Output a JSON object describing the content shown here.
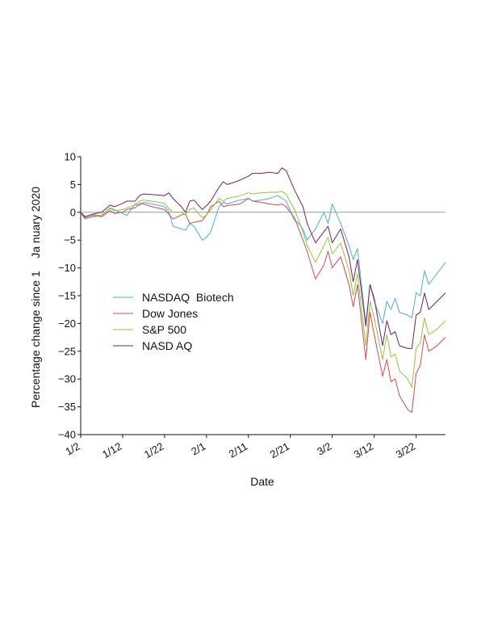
{
  "chart_data": {
    "type": "line",
    "xlabel": "Date",
    "ylabel": "Percentage change since 1    Ja nuary 2020",
    "ylim": [
      -40,
      10
    ],
    "yticks": [
      10,
      5,
      0,
      -5,
      -10,
      -15,
      -20,
      -25,
      -30,
      -35,
      -40
    ],
    "x_tick_labels": [
      "1/2",
      "1/12",
      "1/22",
      "2/1",
      "2/11",
      "2/21",
      "3/2",
      "3/12",
      "3/22"
    ],
    "x_range_days": [
      0,
      87
    ],
    "legend_position": "center-left",
    "grid": false,
    "series": [
      {
        "name": "NASDAQ  Biotech",
        "color": "#4aaed8",
        "points": [
          [
            0,
            0
          ],
          [
            1,
            -1.2
          ],
          [
            3,
            -0.8
          ],
          [
            5,
            -0.5
          ],
          [
            7,
            0.8
          ],
          [
            8,
            0.5
          ],
          [
            10,
            -0.2
          ],
          [
            11,
            -0.6
          ],
          [
            13,
            1.5
          ],
          [
            14,
            1.2
          ],
          [
            15,
            1.8
          ],
          [
            17,
            1.5
          ],
          [
            20,
            1
          ],
          [
            21,
            0.2
          ],
          [
            22,
            -2.5
          ],
          [
            24,
            -3
          ],
          [
            25,
            -3.2
          ],
          [
            26,
            -2
          ],
          [
            27,
            -2.5
          ],
          [
            29,
            -5
          ],
          [
            30,
            -4.5
          ],
          [
            31,
            -3.5
          ],
          [
            33,
            1
          ],
          [
            34,
            1.8
          ],
          [
            35,
            1.5
          ],
          [
            37,
            2
          ],
          [
            38,
            2.2
          ],
          [
            40,
            2.5
          ],
          [
            41,
            2
          ],
          [
            43,
            2.2
          ],
          [
            45,
            2.5
          ],
          [
            47,
            3
          ],
          [
            48,
            2.5
          ],
          [
            49,
            2
          ],
          [
            51,
            -1.5
          ],
          [
            52,
            -2
          ],
          [
            53,
            -3
          ],
          [
            54,
            -5
          ],
          [
            56,
            -3
          ],
          [
            58,
            0
          ],
          [
            59,
            -2
          ],
          [
            60,
            1.5
          ],
          [
            62,
            -2
          ],
          [
            64,
            -6
          ],
          [
            65,
            -8.5
          ],
          [
            66,
            -6.5
          ],
          [
            68,
            -20
          ],
          [
            69,
            -13
          ],
          [
            70,
            -16
          ],
          [
            72,
            -20
          ],
          [
            73,
            -16
          ],
          [
            74,
            -17.5
          ],
          [
            75,
            -15.5
          ],
          [
            76,
            -18
          ],
          [
            78,
            -18.5
          ],
          [
            79,
            -19
          ],
          [
            80,
            -14.5
          ],
          [
            81,
            -15
          ],
          [
            82,
            -10.5
          ],
          [
            83,
            -13
          ],
          [
            85,
            -11
          ],
          [
            87,
            -9
          ]
        ]
      },
      {
        "name": "Dow Jones",
        "color": "#d8484e",
        "points": [
          [
            0,
            0
          ],
          [
            1,
            -1
          ],
          [
            3,
            -0.6
          ],
          [
            5,
            -0.8
          ],
          [
            7,
            0.3
          ],
          [
            8,
            -0.2
          ],
          [
            10,
            0
          ],
          [
            11,
            0.5
          ],
          [
            13,
            0.8
          ],
          [
            14,
            1.6
          ],
          [
            15,
            1.5
          ],
          [
            17,
            1
          ],
          [
            20,
            0.5
          ],
          [
            21,
            -0.3
          ],
          [
            22,
            -1.2
          ],
          [
            24,
            -0.5
          ],
          [
            25,
            -0.3
          ],
          [
            26,
            -2
          ],
          [
            27,
            -1.8
          ],
          [
            29,
            -1.5
          ],
          [
            30,
            -0.5
          ],
          [
            31,
            1
          ],
          [
            33,
            2
          ],
          [
            34,
            1
          ],
          [
            35,
            1.2
          ],
          [
            37,
            1.4
          ],
          [
            38,
            1.5
          ],
          [
            40,
            2.5
          ],
          [
            41,
            2
          ],
          [
            43,
            1.8
          ],
          [
            45,
            1.5
          ],
          [
            47,
            1.3
          ],
          [
            48,
            1.5
          ],
          [
            49,
            1
          ],
          [
            51,
            -1
          ],
          [
            52,
            -3
          ],
          [
            53,
            -5
          ],
          [
            54,
            -7
          ],
          [
            56,
            -12
          ],
          [
            58,
            -9.5
          ],
          [
            59,
            -7
          ],
          [
            60,
            -10
          ],
          [
            62,
            -8
          ],
          [
            64,
            -13
          ],
          [
            65,
            -17
          ],
          [
            66,
            -13
          ],
          [
            68,
            -26.5
          ],
          [
            69,
            -18
          ],
          [
            70,
            -22
          ],
          [
            72,
            -29.5
          ],
          [
            73,
            -26.5
          ],
          [
            74,
            -30.5
          ],
          [
            75,
            -30
          ],
          [
            76,
            -33
          ],
          [
            78,
            -35.5
          ],
          [
            79,
            -36
          ],
          [
            80,
            -29
          ],
          [
            81,
            -27.5
          ],
          [
            82,
            -22
          ],
          [
            83,
            -25
          ],
          [
            85,
            -24
          ],
          [
            87,
            -22.5
          ]
        ]
      },
      {
        "name": "S&P 500",
        "color": "#8ec63f",
        "points": [
          [
            0,
            0
          ],
          [
            1,
            -0.7
          ],
          [
            3,
            -0.4
          ],
          [
            5,
            -0.6
          ],
          [
            7,
            0.7
          ],
          [
            8,
            0.3
          ],
          [
            10,
            0.5
          ],
          [
            11,
            0.8
          ],
          [
            13,
            1.3
          ],
          [
            14,
            2
          ],
          [
            15,
            2.2
          ],
          [
            17,
            2
          ],
          [
            20,
            1.6
          ],
          [
            21,
            0.7
          ],
          [
            22,
            0
          ],
          [
            24,
            0
          ],
          [
            25,
            -0.5
          ],
          [
            26,
            0.5
          ],
          [
            27,
            0.8
          ],
          [
            29,
            -1
          ],
          [
            30,
            -0.5
          ],
          [
            31,
            0.5
          ],
          [
            33,
            2.5
          ],
          [
            34,
            2
          ],
          [
            35,
            2.5
          ],
          [
            37,
            2.8
          ],
          [
            38,
            3
          ],
          [
            40,
            3.5
          ],
          [
            41,
            3.3
          ],
          [
            43,
            3.5
          ],
          [
            45,
            3.6
          ],
          [
            47,
            3.6
          ],
          [
            48,
            3.8
          ],
          [
            49,
            3.2
          ],
          [
            51,
            0.5
          ],
          [
            52,
            -1.5
          ],
          [
            53,
            -3.5
          ],
          [
            54,
            -6
          ],
          [
            56,
            -9
          ],
          [
            58,
            -6
          ],
          [
            59,
            -4.5
          ],
          [
            60,
            -7.5
          ],
          [
            62,
            -5.5
          ],
          [
            64,
            -10.5
          ],
          [
            65,
            -15
          ],
          [
            66,
            -11
          ],
          [
            68,
            -24
          ],
          [
            69,
            -16
          ],
          [
            70,
            -19
          ],
          [
            72,
            -26.5
          ],
          [
            73,
            -22
          ],
          [
            74,
            -26
          ],
          [
            75,
            -25.5
          ],
          [
            76,
            -28.5
          ],
          [
            78,
            -30
          ],
          [
            79,
            -31.5
          ],
          [
            80,
            -24.5
          ],
          [
            81,
            -23.5
          ],
          [
            82,
            -19
          ],
          [
            83,
            -22
          ],
          [
            85,
            -21
          ],
          [
            87,
            -19.5
          ]
        ]
      },
      {
        "name": "NASD AQ",
        "color": "#7a1f5e",
        "points": [
          [
            0,
            0
          ],
          [
            1,
            -0.8
          ],
          [
            3,
            -0.3
          ],
          [
            5,
            0
          ],
          [
            7,
            1.3
          ],
          [
            8,
            1
          ],
          [
            10,
            1.6
          ],
          [
            11,
            2
          ],
          [
            13,
            2
          ],
          [
            14,
            3
          ],
          [
            15,
            3.3
          ],
          [
            17,
            3.2
          ],
          [
            20,
            3
          ],
          [
            21,
            3.5
          ],
          [
            22,
            2.5
          ],
          [
            24,
            1
          ],
          [
            25,
            0
          ],
          [
            26,
            2
          ],
          [
            27,
            2.2
          ],
          [
            29,
            0.5
          ],
          [
            30,
            1.2
          ],
          [
            31,
            2
          ],
          [
            33,
            4.5
          ],
          [
            34,
            5.5
          ],
          [
            35,
            5
          ],
          [
            37,
            5.5
          ],
          [
            38,
            5.8
          ],
          [
            40,
            6.5
          ],
          [
            41,
            7
          ],
          [
            43,
            7
          ],
          [
            45,
            7.2
          ],
          [
            47,
            7
          ],
          [
            48,
            8
          ],
          [
            49,
            7.5
          ],
          [
            51,
            4
          ],
          [
            52,
            2.5
          ],
          [
            53,
            1
          ],
          [
            54,
            -2
          ],
          [
            56,
            -5.5
          ],
          [
            58,
            -3.5
          ],
          [
            59,
            -2.5
          ],
          [
            60,
            -5.5
          ],
          [
            62,
            -3
          ],
          [
            64,
            -8
          ],
          [
            65,
            -12.5
          ],
          [
            66,
            -8.5
          ],
          [
            68,
            -20.5
          ],
          [
            69,
            -13
          ],
          [
            70,
            -15.5
          ],
          [
            72,
            -24
          ],
          [
            73,
            -19.5
          ],
          [
            74,
            -22
          ],
          [
            75,
            -21.5
          ],
          [
            76,
            -24
          ],
          [
            78,
            -24.5
          ],
          [
            79,
            -24.5
          ],
          [
            80,
            -18.5
          ],
          [
            81,
            -18
          ],
          [
            82,
            -14.5
          ],
          [
            83,
            -17.5
          ],
          [
            85,
            -16
          ],
          [
            87,
            -14.5
          ]
        ]
      }
    ]
  }
}
